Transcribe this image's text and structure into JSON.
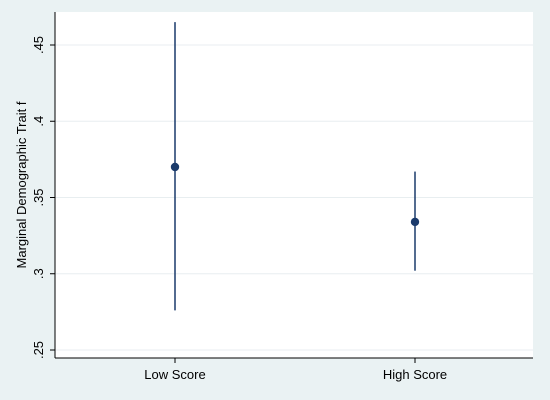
{
  "chart_data": {
    "type": "scatter",
    "title": "",
    "xlabel": "",
    "ylabel": "Marginal Demographic Trait f",
    "ylim": [
      0.25,
      0.465
    ],
    "y_ticks": [
      0.25,
      0.3,
      0.35,
      0.4,
      0.45
    ],
    "y_tick_labels": [
      ".25",
      ".3",
      ".35",
      ".4",
      ".45"
    ],
    "categories": [
      "Low Score",
      "High Score"
    ],
    "points": [
      {
        "category": "Low Score",
        "estimate": 0.37,
        "ci_low": 0.276,
        "ci_high": 0.465
      },
      {
        "category": "High Score",
        "estimate": 0.334,
        "ci_low": 0.302,
        "ci_high": 0.367
      }
    ],
    "grid": true,
    "legend": "none"
  },
  "colors": {
    "background": "#eaf2f3",
    "plot_area": "#ffffff",
    "marker": "#1a3a6b",
    "grid": "#e8eef0"
  }
}
